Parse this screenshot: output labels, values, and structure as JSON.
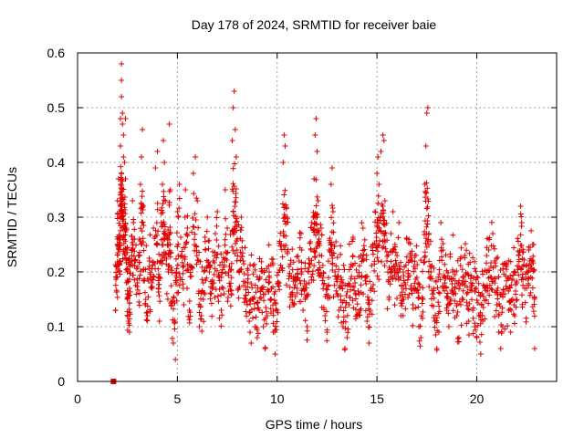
{
  "chart_data": {
    "type": "scatter",
    "title": "Day 178 of 2024, SRMTID for receiver baie",
    "xlabel": "GPS time / hours",
    "ylabel": "SRMTID / TECUs",
    "xlim": [
      0,
      24
    ],
    "ylim": [
      0,
      0.6
    ],
    "x_ticks": [
      0,
      5,
      10,
      15,
      20
    ],
    "x_tick_labels": [
      "0",
      "5",
      "10",
      "15",
      "20"
    ],
    "y_ticks": [
      0,
      0.1,
      0.2,
      0.3,
      0.4,
      0.5,
      0.6
    ],
    "y_tick_labels": [
      "0",
      "0.1",
      "0.2",
      "0.3",
      "0.4",
      "0.5",
      "0.6"
    ],
    "grid": true,
    "marker": "plus",
    "color": "#e00000",
    "series": [
      {
        "name": "SRMTID",
        "points": [
          [
            1.8,
            0.0
          ],
          [
            1.9,
            0.13
          ],
          [
            1.95,
            0.19
          ],
          [
            2.0,
            0.26
          ],
          [
            2.0,
            0.33
          ],
          [
            2.05,
            0.37
          ],
          [
            2.1,
            0.3
          ],
          [
            2.1,
            0.22
          ],
          [
            2.15,
            0.43
          ],
          [
            2.15,
            0.48
          ],
          [
            2.2,
            0.58
          ],
          [
            2.2,
            0.55
          ],
          [
            2.2,
            0.52
          ],
          [
            2.25,
            0.49
          ],
          [
            2.25,
            0.47
          ],
          [
            2.3,
            0.45
          ],
          [
            2.3,
            0.41
          ],
          [
            2.35,
            0.4
          ],
          [
            2.4,
            0.48
          ],
          [
            2.4,
            0.37
          ],
          [
            2.45,
            0.28
          ],
          [
            2.5,
            0.2
          ],
          [
            2.5,
            0.15
          ],
          [
            2.55,
            0.11
          ],
          [
            2.6,
            0.09
          ],
          [
            2.6,
            0.17
          ],
          [
            2.7,
            0.24
          ],
          [
            2.75,
            0.33
          ],
          [
            2.8,
            0.29
          ],
          [
            2.9,
            0.22
          ],
          [
            3.0,
            0.18
          ],
          [
            3.1,
            0.26
          ],
          [
            3.15,
            0.36
          ],
          [
            3.2,
            0.41
          ],
          [
            3.25,
            0.46
          ],
          [
            3.3,
            0.32
          ],
          [
            3.4,
            0.14
          ],
          [
            3.5,
            0.12
          ],
          [
            3.6,
            0.22
          ],
          [
            3.7,
            0.18
          ],
          [
            3.8,
            0.28
          ],
          [
            3.9,
            0.39
          ],
          [
            4.0,
            0.42
          ],
          [
            4.05,
            0.17
          ],
          [
            4.1,
            0.11
          ],
          [
            4.2,
            0.29
          ],
          [
            4.25,
            0.36
          ],
          [
            4.3,
            0.44
          ],
          [
            4.35,
            0.4
          ],
          [
            4.4,
            0.33
          ],
          [
            4.5,
            0.25
          ],
          [
            4.55,
            0.2
          ],
          [
            4.6,
            0.47
          ],
          [
            4.65,
            0.35
          ],
          [
            4.7,
            0.14
          ],
          [
            4.8,
            0.07
          ],
          [
            4.9,
            0.04
          ],
          [
            4.95,
            0.19
          ],
          [
            5.0,
            0.31
          ],
          [
            5.1,
            0.36
          ],
          [
            5.2,
            0.23
          ],
          [
            5.3,
            0.17
          ],
          [
            5.4,
            0.35
          ],
          [
            5.5,
            0.28
          ],
          [
            5.6,
            0.13
          ],
          [
            5.7,
            0.21
          ],
          [
            5.8,
            0.38
          ],
          [
            5.9,
            0.41
          ],
          [
            6.0,
            0.33
          ],
          [
            6.1,
            0.1
          ],
          [
            6.2,
            0.12
          ],
          [
            6.3,
            0.18
          ],
          [
            6.4,
            0.24
          ],
          [
            6.5,
            0.3
          ],
          [
            6.6,
            0.2
          ],
          [
            6.7,
            0.16
          ],
          [
            6.8,
            0.22
          ],
          [
            6.9,
            0.27
          ],
          [
            7.0,
            0.31
          ],
          [
            7.1,
            0.19
          ],
          [
            7.2,
            0.13
          ],
          [
            7.3,
            0.17
          ],
          [
            7.4,
            0.35
          ],
          [
            7.5,
            0.28
          ],
          [
            7.6,
            0.21
          ],
          [
            7.7,
            0.16
          ],
          [
            7.75,
            0.44
          ],
          [
            7.8,
            0.5
          ],
          [
            7.85,
            0.53
          ],
          [
            7.9,
            0.46
          ],
          [
            7.95,
            0.41
          ],
          [
            8.0,
            0.26
          ],
          [
            8.1,
            0.2
          ],
          [
            8.2,
            0.3
          ],
          [
            8.3,
            0.22
          ],
          [
            8.4,
            0.18
          ],
          [
            8.5,
            0.14
          ],
          [
            8.6,
            0.11
          ],
          [
            8.7,
            0.07
          ],
          [
            8.8,
            0.15
          ],
          [
            8.9,
            0.1
          ],
          [
            9.0,
            0.08
          ],
          [
            9.1,
            0.13
          ],
          [
            9.2,
            0.17
          ],
          [
            9.3,
            0.1
          ],
          [
            9.4,
            0.06
          ],
          [
            9.5,
            0.12
          ],
          [
            9.6,
            0.2
          ],
          [
            9.7,
            0.15
          ],
          [
            9.8,
            0.09
          ],
          [
            9.9,
            0.05
          ],
          [
            10.0,
            0.13
          ],
          [
            10.1,
            0.18
          ],
          [
            10.2,
            0.25
          ],
          [
            10.3,
            0.4
          ],
          [
            10.35,
            0.45
          ],
          [
            10.4,
            0.43
          ],
          [
            10.5,
            0.3
          ],
          [
            10.6,
            0.21
          ],
          [
            10.7,
            0.16
          ],
          [
            10.8,
            0.14
          ],
          [
            10.9,
            0.19
          ],
          [
            11.0,
            0.17
          ],
          [
            11.1,
            0.22
          ],
          [
            11.2,
            0.27
          ],
          [
            11.3,
            0.13
          ],
          [
            11.4,
            0.15
          ],
          [
            11.5,
            0.1
          ],
          [
            11.6,
            0.18
          ],
          [
            11.7,
            0.24
          ],
          [
            11.8,
            0.3
          ],
          [
            11.85,
            0.37
          ],
          [
            11.9,
            0.45
          ],
          [
            11.95,
            0.48
          ],
          [
            12.0,
            0.42
          ],
          [
            12.05,
            0.33
          ],
          [
            12.1,
            0.26
          ],
          [
            12.2,
            0.28
          ],
          [
            12.3,
            0.19
          ],
          [
            12.4,
            0.12
          ],
          [
            12.5,
            0.09
          ],
          [
            12.6,
            0.24
          ],
          [
            12.7,
            0.36
          ],
          [
            12.75,
            0.39
          ],
          [
            12.8,
            0.31
          ],
          [
            12.9,
            0.2
          ],
          [
            13.0,
            0.16
          ],
          [
            13.1,
            0.13
          ],
          [
            13.2,
            0.19
          ],
          [
            13.3,
            0.1
          ],
          [
            13.4,
            0.06
          ],
          [
            13.5,
            0.08
          ],
          [
            13.6,
            0.14
          ],
          [
            13.7,
            0.21
          ],
          [
            13.8,
            0.26
          ],
          [
            13.9,
            0.18
          ],
          [
            14.0,
            0.12
          ],
          [
            14.1,
            0.16
          ],
          [
            14.2,
            0.23
          ],
          [
            14.3,
            0.28
          ],
          [
            14.4,
            0.19
          ],
          [
            14.5,
            0.11
          ],
          [
            14.6,
            0.07
          ],
          [
            14.7,
            0.17
          ],
          [
            14.8,
            0.25
          ],
          [
            14.9,
            0.31
          ],
          [
            15.0,
            0.38
          ],
          [
            15.05,
            0.41
          ],
          [
            15.1,
            0.36
          ],
          [
            15.2,
            0.42
          ],
          [
            15.3,
            0.45
          ],
          [
            15.35,
            0.44
          ],
          [
            15.4,
            0.33
          ],
          [
            15.5,
            0.22
          ],
          [
            15.6,
            0.15
          ],
          [
            15.7,
            0.27
          ],
          [
            15.8,
            0.31
          ],
          [
            15.9,
            0.25
          ],
          [
            16.0,
            0.2
          ],
          [
            16.1,
            0.29
          ],
          [
            16.2,
            0.12
          ],
          [
            16.3,
            0.15
          ],
          [
            16.4,
            0.18
          ],
          [
            16.5,
            0.26
          ],
          [
            16.6,
            0.22
          ],
          [
            16.7,
            0.17
          ],
          [
            16.8,
            0.14
          ],
          [
            16.9,
            0.23
          ],
          [
            17.0,
            0.19
          ],
          [
            17.1,
            0.1
          ],
          [
            17.2,
            0.08
          ],
          [
            17.3,
            0.15
          ],
          [
            17.4,
            0.36
          ],
          [
            17.45,
            0.43
          ],
          [
            17.5,
            0.49
          ],
          [
            17.55,
            0.5
          ],
          [
            17.6,
            0.27
          ],
          [
            17.7,
            0.21
          ],
          [
            17.8,
            0.16
          ],
          [
            17.9,
            0.11
          ],
          [
            18.0,
            0.06
          ],
          [
            18.1,
            0.09
          ],
          [
            18.2,
            0.29
          ],
          [
            18.3,
            0.24
          ],
          [
            18.4,
            0.18
          ],
          [
            18.5,
            0.13
          ],
          [
            18.6,
            0.1
          ],
          [
            18.7,
            0.15
          ],
          [
            18.8,
            0.2
          ],
          [
            18.9,
            0.17
          ],
          [
            19.0,
            0.12
          ],
          [
            19.1,
            0.08
          ],
          [
            19.2,
            0.14
          ],
          [
            19.3,
            0.19
          ],
          [
            19.4,
            0.23
          ],
          [
            19.5,
            0.16
          ],
          [
            19.6,
            0.11
          ],
          [
            19.7,
            0.18
          ],
          [
            19.8,
            0.13
          ],
          [
            19.9,
            0.1
          ],
          [
            20.0,
            0.08
          ],
          [
            20.1,
            0.12
          ],
          [
            20.2,
            0.05
          ],
          [
            20.3,
            0.11
          ],
          [
            20.4,
            0.17
          ],
          [
            20.5,
            0.2
          ],
          [
            20.6,
            0.24
          ],
          [
            20.7,
            0.21
          ],
          [
            20.8,
            0.27
          ],
          [
            20.9,
            0.18
          ],
          [
            21.0,
            0.14
          ],
          [
            21.1,
            0.09
          ],
          [
            21.2,
            0.06
          ],
          [
            21.3,
            0.1
          ],
          [
            21.4,
            0.16
          ],
          [
            21.5,
            0.21
          ],
          [
            21.6,
            0.13
          ],
          [
            21.7,
            0.09
          ],
          [
            21.8,
            0.15
          ],
          [
            21.9,
            0.12
          ],
          [
            22.0,
            0.18
          ],
          [
            22.1,
            0.23
          ],
          [
            22.2,
            0.32
          ],
          [
            22.25,
            0.29
          ],
          [
            22.3,
            0.21
          ],
          [
            22.4,
            0.17
          ],
          [
            22.5,
            0.2
          ],
          [
            22.6,
            0.24
          ],
          [
            22.7,
            0.19
          ],
          [
            22.8,
            0.22
          ],
          [
            22.85,
            0.25
          ],
          [
            22.9,
            0.06
          ]
        ],
        "extra_points_scatter_seed": 178
      }
    ]
  }
}
